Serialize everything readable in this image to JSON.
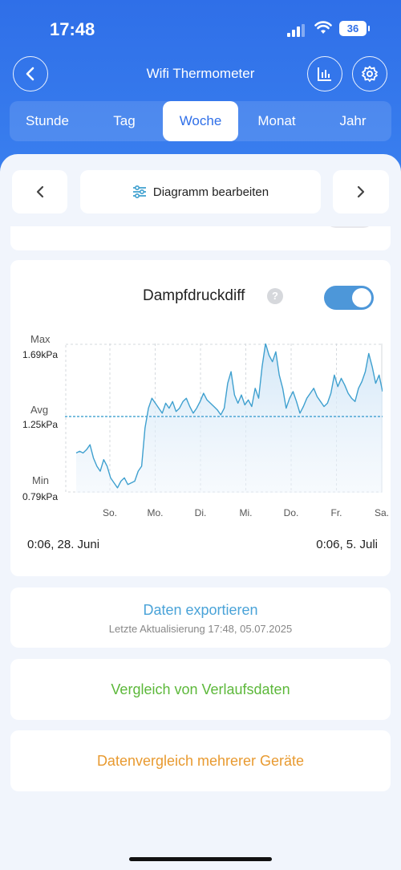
{
  "status": {
    "time": "17:48",
    "battery": "36"
  },
  "nav": {
    "title": "Wifi Thermometer"
  },
  "tabs": [
    {
      "label": "Stunde",
      "active": false
    },
    {
      "label": "Tag",
      "active": false
    },
    {
      "label": "Woche",
      "active": true
    },
    {
      "label": "Monat",
      "active": false
    },
    {
      "label": "Jahr",
      "active": false
    }
  ],
  "toolbar": {
    "edit_label": "Diagramm bearbeiten"
  },
  "chart_card": {
    "title": "Dampfdruckdiff",
    "help": "?",
    "toggle_on": true,
    "range_start": "0:06,  28. Juni",
    "range_end": "0:06,  5. Juli"
  },
  "chart_data": {
    "type": "area",
    "series": [
      {
        "color": "#3fa0cf",
        "values": [
          1.03,
          1.04,
          1.03,
          1.05,
          1.08,
          1.0,
          0.95,
          0.92,
          0.99,
          0.95,
          0.88,
          0.85,
          0.82,
          0.86,
          0.88,
          0.84,
          0.85,
          0.86,
          0.92,
          0.95,
          1.18,
          1.3,
          1.36,
          1.33,
          1.3,
          1.27,
          1.33,
          1.3,
          1.34,
          1.28,
          1.3,
          1.34,
          1.36,
          1.31,
          1.27,
          1.3,
          1.34,
          1.39,
          1.35,
          1.33,
          1.31,
          1.29,
          1.26,
          1.3,
          1.45,
          1.52,
          1.38,
          1.33,
          1.38,
          1.32,
          1.35,
          1.31,
          1.42,
          1.36,
          1.55,
          1.69,
          1.62,
          1.58,
          1.64,
          1.5,
          1.42,
          1.3,
          1.36,
          1.4,
          1.34,
          1.27,
          1.31,
          1.36,
          1.39,
          1.42,
          1.37,
          1.34,
          1.31,
          1.33,
          1.39,
          1.5,
          1.43,
          1.48,
          1.44,
          1.39,
          1.36,
          1.34,
          1.42,
          1.46,
          1.52,
          1.63,
          1.55,
          1.45,
          1.5,
          1.4
        ]
      }
    ],
    "x_ticks": [
      "So.",
      "Mo.",
      "Di.",
      "Mi.",
      "Do.",
      "Fr.",
      "Sa."
    ],
    "y_labels": {
      "max": "Max",
      "max_value": "1.69kPa",
      "avg": "Avg",
      "avg_value": "1.25kPa",
      "min": "Min",
      "min_value": "0.79kPa"
    },
    "ylim": [
      0.79,
      1.69
    ],
    "avg": 1.25,
    "grid": true
  },
  "export": {
    "label": "Daten exportieren",
    "updated": "Letzte Aktualisierung 17:48,  05.07.2025"
  },
  "compare": {
    "label": "Vergleich von Verlaufsdaten"
  },
  "multi": {
    "label": "Datenvergleich mehrerer Geräte"
  },
  "colors": {
    "accent": "#2f6fe8",
    "export": "#4aa3d8",
    "compare": "#5cb83a",
    "multi": "#e89a30"
  }
}
